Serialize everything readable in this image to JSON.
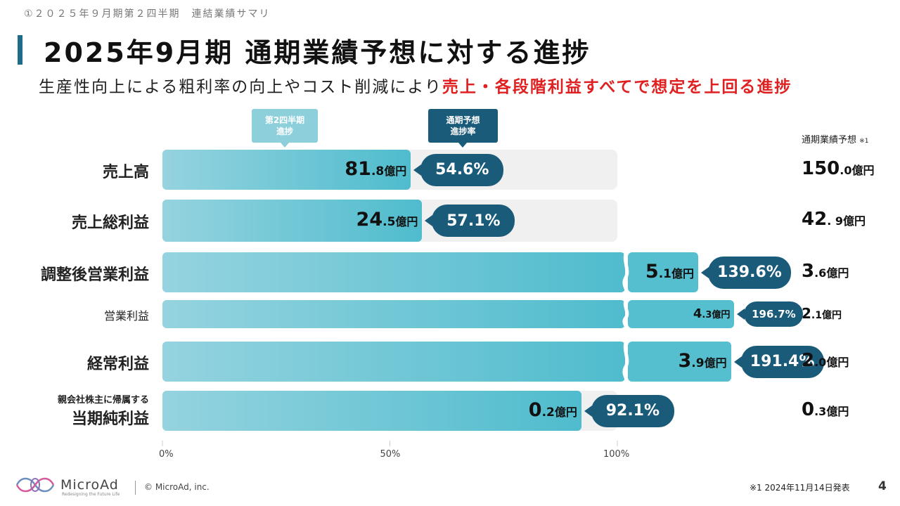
{
  "header": {
    "breadcrumb": "①２０２５年９月期第２四半期　連結業績サマリ",
    "title": "2025年9月期 通期業績予想に対する進捗",
    "subtitle_plain": "生産性向上による粗利率の向上やコスト削減により",
    "subtitle_highlight": "売上・各段階利益すべてで想定を上回る進捗"
  },
  "callouts": {
    "q2_progress": [
      "第2四半期",
      "進捗"
    ],
    "forecast_rate": [
      "通期予想",
      "進捗率"
    ]
  },
  "forecast_header": {
    "label": "通期業績予想",
    "note": "※1"
  },
  "footer": {
    "logo": "MicroAd",
    "tagline": "Redesigning the Future Life",
    "copyright": "© MicroAd, inc.",
    "note": "※1 2024年11月14日発表",
    "page": "4"
  },
  "colors": {
    "accent": "#1b5b7a",
    "bar_light": "#95d3df",
    "bar_dark": "#4fbccd",
    "highlight": "#e02020",
    "track": "#f0f0f0"
  },
  "chart_data": {
    "type": "bar",
    "orientation": "horizontal",
    "xlim": [
      0,
      100
    ],
    "xticks": [
      "0%",
      "50%",
      "100%"
    ],
    "unit": "億円",
    "rows": [
      {
        "label": "売上高",
        "sublabel": "",
        "actual_int": "81",
        "actual_dec": ".8",
        "progress_pct": 54.6,
        "progress_label": "54.6%",
        "forecast_int": "150",
        "forecast_dec": ".0",
        "capped": false
      },
      {
        "label": "売上総利益",
        "sublabel": "",
        "actual_int": "24",
        "actual_dec": ".5",
        "progress_pct": 57.1,
        "progress_label": "57.1%",
        "forecast_int": "42",
        "forecast_dec": ". 9",
        "capped": false
      },
      {
        "label": "調整後営業利益",
        "sublabel": "",
        "actual_int": "5",
        "actual_dec": ".1",
        "progress_pct": 139.6,
        "progress_label": "139.6%",
        "forecast_int": "3",
        "forecast_dec": ".6",
        "capped": true
      },
      {
        "label": "営業利益",
        "sublabel": "",
        "actual_int": "4",
        "actual_dec": ".3",
        "progress_pct": 196.7,
        "progress_label": "196.7%",
        "forecast_int": "2",
        "forecast_dec": ".1",
        "capped": true
      },
      {
        "label": "経常利益",
        "sublabel": "",
        "actual_int": "3",
        "actual_dec": ".9",
        "progress_pct": 191.4,
        "progress_label": "191.4%",
        "forecast_int": "2",
        "forecast_dec": ".0",
        "capped": true
      },
      {
        "label": "当期純利益",
        "sublabel": "親会社株主に帰属する",
        "actual_int": "0",
        "actual_dec": ".2",
        "progress_pct": 92.1,
        "progress_label": "92.1%",
        "forecast_int": "0",
        "forecast_dec": ".3",
        "capped": false
      }
    ]
  }
}
